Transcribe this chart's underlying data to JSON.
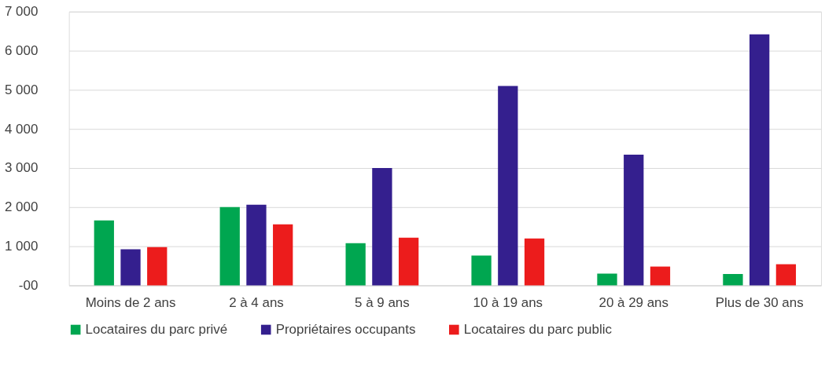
{
  "chart_data": {
    "type": "bar",
    "categories": [
      "Moins de 2 ans",
      "2 à 4 ans",
      "5 à 9 ans",
      "10 à 19 ans",
      "20 à 29 ans",
      "Plus de 30 ans"
    ],
    "series": [
      {
        "name": "Locataires du parc privé",
        "color": "#00a650",
        "values": [
          1660,
          2000,
          1080,
          760,
          300,
          290
        ]
      },
      {
        "name": "Propriétaires occupants",
        "color": "#341f8e",
        "values": [
          920,
          2060,
          3000,
          5100,
          3340,
          6420
        ]
      },
      {
        "name": "Locataires du parc public",
        "color": "#ec1c1c",
        "values": [
          980,
          1560,
          1220,
          1200,
          480,
          540
        ]
      }
    ],
    "ylim": [
      0,
      7000
    ],
    "yticks": [
      {
        "value": 0,
        "label": "-00"
      },
      {
        "value": 1000,
        "label": "1 000"
      },
      {
        "value": 2000,
        "label": "2 000"
      },
      {
        "value": 3000,
        "label": "3 000"
      },
      {
        "value": 4000,
        "label": "4 000"
      },
      {
        "value": 5000,
        "label": "5 000"
      },
      {
        "value": 6000,
        "label": "6 000"
      },
      {
        "value": 7000,
        "label": "7 000"
      }
    ],
    "grid": "y",
    "legend": "bottom"
  }
}
